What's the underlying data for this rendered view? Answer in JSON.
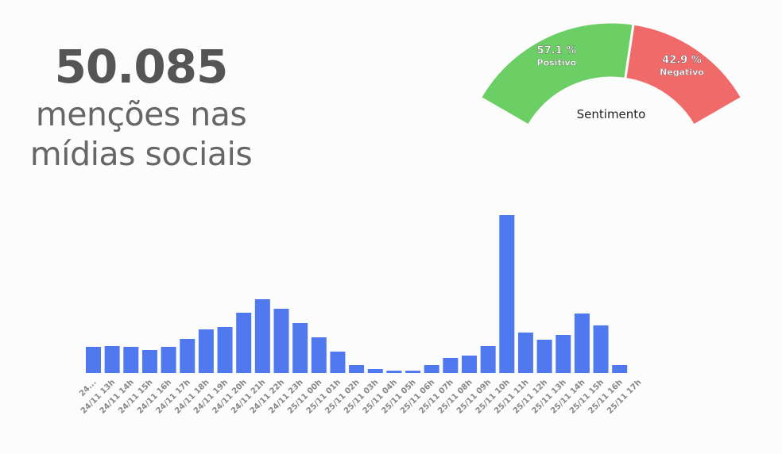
{
  "headline": {
    "count": "50.085",
    "line1": "menções nas",
    "line2": "mídias sociais"
  },
  "chart_data": [
    {
      "type": "pie",
      "subtype": "semi-donut gauge",
      "title": "Sentimento",
      "slices": [
        {
          "name": "Positivo",
          "value": 57.1,
          "label": "57.1 %",
          "color": "#6ccf66"
        },
        {
          "name": "Negativo",
          "value": 42.9,
          "label": "42.9 %",
          "color": "#f06a6a"
        }
      ]
    },
    {
      "type": "bar",
      "title": "",
      "xlabel": "",
      "ylabel": "",
      "color": "#5079ef",
      "categories": [
        "24...",
        "24/11 13h",
        "24/11 14h",
        "24/11 15h",
        "24/11 16h",
        "24/11 17h",
        "24/11 18h",
        "24/11 19h",
        "24/11 20h",
        "24/11 21h",
        "24/11 22h",
        "24/11 23h",
        "25/11 00h",
        "25/11 01h",
        "25/11 02h",
        "25/11 03h",
        "25/11 04h",
        "25/11 05h",
        "25/11 06h",
        "25/11 07h",
        "25/11 08h",
        "25/11 09h",
        "25/11 10h",
        "25/11 11h",
        "25/11 12h",
        "25/11 13h",
        "25/11 14h",
        "25/11 15h",
        "25/11 16h",
        "25/11 17h"
      ],
      "values": [
        33,
        34,
        33,
        29,
        33,
        43,
        55,
        58,
        76,
        93,
        81,
        63,
        45,
        27,
        10,
        5,
        3,
        3,
        10,
        19,
        22,
        34,
        199,
        51,
        42,
        48,
        75,
        60,
        10,
        0
      ],
      "ylim": [
        0,
        200
      ],
      "grid": false
    }
  ]
}
